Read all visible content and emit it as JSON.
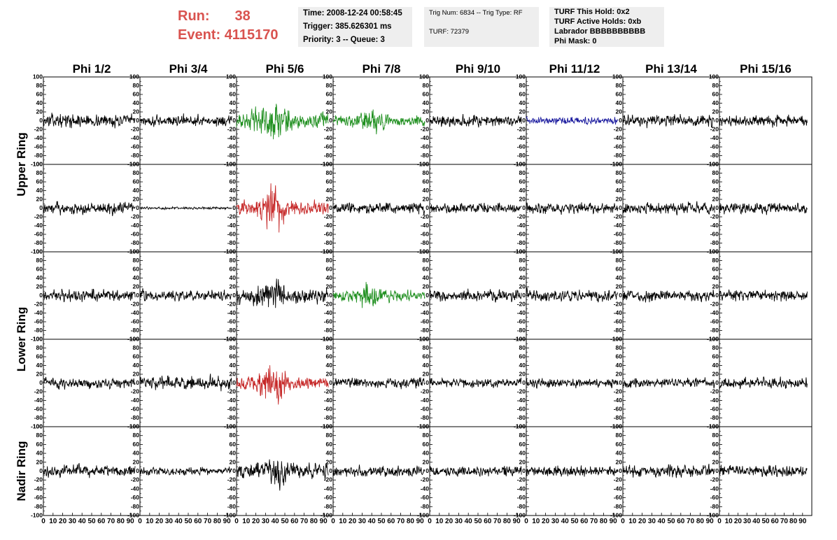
{
  "header": {
    "run_label": "Run:",
    "run_value": "38",
    "event_label": "Event:",
    "event_value": "4115170"
  },
  "info_box_1": {
    "time": "Time: 2008-12-24 00:58:45",
    "trigger": "Trigger: 385.626301 ms",
    "priority": "Priority: 3 -- Queue: 3"
  },
  "info_box_2": {
    "trig": "Trig Num: 6834 -- Trig Type: RF",
    "turf": "TURF: 72379"
  },
  "info_box_3": {
    "hold": "TURF This Hold: 0x2",
    "active": "TURF Active Holds: 0xb",
    "labrador": "Labrador BBBBBBBBBB",
    "phimask": "Phi Mask: 0"
  },
  "chart_data": {
    "type": "line",
    "grid": false,
    "column_titles": [
      "Phi 1/2",
      "Phi 3/4",
      "Phi 5/6",
      "Phi 7/8",
      "Phi 9/10",
      "Phi 11/12",
      "Phi 13/14",
      "Phi 15/16"
    ],
    "row_titles": [
      {
        "label": "Upper Ring",
        "span_rows": [
          0,
          1
        ]
      },
      {
        "label": "Lower Ring",
        "span_rows": [
          2,
          3
        ]
      },
      {
        "label": "Nadir Ring",
        "span_rows": [
          4,
          4
        ]
      }
    ],
    "xlim": [
      0,
      100
    ],
    "ylim": [
      -100,
      100
    ],
    "x_ticks": [
      "0",
      "10",
      "20",
      "30",
      "40",
      "50",
      "60",
      "70",
      "80",
      "90"
    ],
    "y_ticks": [
      "100",
      "80",
      "60",
      "40",
      "20",
      "0",
      "-20",
      "-40",
      "-60",
      "-80",
      "-100"
    ],
    "x_extent": [
      0,
      95
    ],
    "colors": {
      "black": "#000000",
      "green": "#1f8f1f",
      "red": "#c62828",
      "blue": "#1a1a9e"
    },
    "panels": [
      {
        "row": 0,
        "col": 0,
        "color": "black",
        "amp": 16,
        "burst": 0
      },
      {
        "row": 0,
        "col": 1,
        "color": "black",
        "amp": 14,
        "burst": 0
      },
      {
        "row": 0,
        "col": 2,
        "color": "green",
        "amp": 20,
        "burst": 1.8
      },
      {
        "row": 0,
        "col": 3,
        "color": "green",
        "amp": 13,
        "burst": 1.6
      },
      {
        "row": 0,
        "col": 4,
        "color": "black",
        "amp": 15,
        "burst": 0
      },
      {
        "row": 0,
        "col": 5,
        "color": "blue",
        "amp": 9,
        "burst": 0
      },
      {
        "row": 0,
        "col": 6,
        "color": "black",
        "amp": 15,
        "burst": 0
      },
      {
        "row": 0,
        "col": 7,
        "color": "black",
        "amp": 14,
        "burst": 0
      },
      {
        "row": 1,
        "col": 0,
        "color": "black",
        "amp": 15,
        "burst": 0
      },
      {
        "row": 1,
        "col": 1,
        "color": "black",
        "amp": 3,
        "burst": 0
      },
      {
        "row": 1,
        "col": 2,
        "color": "red",
        "amp": 18,
        "burst": 2.4
      },
      {
        "row": 1,
        "col": 3,
        "color": "black",
        "amp": 14,
        "burst": 0
      },
      {
        "row": 1,
        "col": 4,
        "color": "black",
        "amp": 13,
        "burst": 0
      },
      {
        "row": 1,
        "col": 5,
        "color": "black",
        "amp": 13,
        "burst": 0
      },
      {
        "row": 1,
        "col": 6,
        "color": "black",
        "amp": 14,
        "burst": 0
      },
      {
        "row": 1,
        "col": 7,
        "color": "black",
        "amp": 14,
        "burst": 0
      },
      {
        "row": 2,
        "col": 0,
        "color": "black",
        "amp": 15,
        "burst": 0
      },
      {
        "row": 2,
        "col": 1,
        "color": "black",
        "amp": 13,
        "burst": 0
      },
      {
        "row": 2,
        "col": 2,
        "color": "black",
        "amp": 19,
        "burst": 1.4
      },
      {
        "row": 2,
        "col": 3,
        "color": "green",
        "amp": 13,
        "burst": 1.6
      },
      {
        "row": 2,
        "col": 4,
        "color": "black",
        "amp": 15,
        "burst": 0
      },
      {
        "row": 2,
        "col": 5,
        "color": "black",
        "amp": 15,
        "burst": 0
      },
      {
        "row": 2,
        "col": 6,
        "color": "black",
        "amp": 14,
        "burst": 0
      },
      {
        "row": 2,
        "col": 7,
        "color": "black",
        "amp": 14,
        "burst": 0
      },
      {
        "row": 3,
        "col": 0,
        "color": "black",
        "amp": 13,
        "burst": 0
      },
      {
        "row": 3,
        "col": 1,
        "color": "black",
        "amp": 17,
        "burst": 0
      },
      {
        "row": 3,
        "col": 2,
        "color": "red",
        "amp": 17,
        "burst": 2.4
      },
      {
        "row": 3,
        "col": 3,
        "color": "black",
        "amp": 13,
        "burst": 0
      },
      {
        "row": 3,
        "col": 4,
        "color": "black",
        "amp": 11,
        "burst": 0
      },
      {
        "row": 3,
        "col": 5,
        "color": "black",
        "amp": 12,
        "burst": 0
      },
      {
        "row": 3,
        "col": 6,
        "color": "black",
        "amp": 12,
        "burst": 0
      },
      {
        "row": 3,
        "col": 7,
        "color": "black",
        "amp": 13,
        "burst": 0
      },
      {
        "row": 4,
        "col": 0,
        "color": "black",
        "amp": 14,
        "burst": 0
      },
      {
        "row": 4,
        "col": 1,
        "color": "black",
        "amp": 10,
        "burst": 0
      },
      {
        "row": 4,
        "col": 2,
        "color": "black",
        "amp": 18,
        "burst": 1.4
      },
      {
        "row": 4,
        "col": 3,
        "color": "black",
        "amp": 14,
        "burst": 0
      },
      {
        "row": 4,
        "col": 4,
        "color": "black",
        "amp": 13,
        "burst": 0
      },
      {
        "row": 4,
        "col": 5,
        "color": "black",
        "amp": 13,
        "burst": 0
      },
      {
        "row": 4,
        "col": 6,
        "color": "black",
        "amp": 14,
        "burst": 0
      },
      {
        "row": 4,
        "col": 7,
        "color": "black",
        "amp": 13,
        "burst": 0
      }
    ]
  }
}
